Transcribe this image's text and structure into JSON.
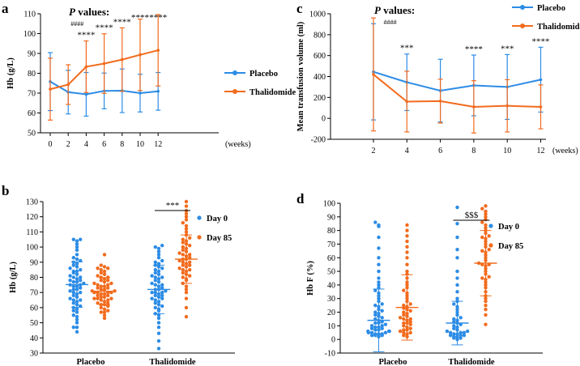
{
  "colors": {
    "placebo": "#2C8CE6",
    "thalidomide": "#F26B1D",
    "axis": "#000000"
  },
  "panels": {
    "a": {
      "label": "a"
    },
    "b": {
      "label": "b"
    },
    "c": {
      "label": "c"
    },
    "d": {
      "label": "d"
    }
  },
  "chart_data": [
    {
      "panel": "a",
      "type": "line",
      "title_parts": {
        "p_italic": "P",
        "rest": " values:"
      },
      "ylabel": "Hb (g/L)",
      "xlabel": "(weeks)",
      "x": [
        0,
        2,
        4,
        6,
        8,
        10,
        12
      ],
      "xlim": [
        -1,
        13
      ],
      "ylim": [
        50,
        110
      ],
      "yticks": [
        50,
        60,
        70,
        80,
        90,
        100,
        110
      ],
      "series": [
        {
          "name": "Placebo",
          "color_key": "placebo",
          "values": [
            75.8,
            70.5,
            69.4,
            71.1,
            71.2,
            70.0,
            70.9
          ],
          "err": [
            14.6,
            11.0,
            11.0,
            9.0,
            11.0,
            9.5,
            9.5
          ]
        },
        {
          "name": "Thalidomide",
          "color_key": "thalidomide",
          "values": [
            72.0,
            74.3,
            83.3,
            84.9,
            86.9,
            89.3,
            91.6
          ],
          "err": [
            15.6,
            10.0,
            13.0,
            15.0,
            16.0,
            18.0,
            18.0
          ]
        }
      ],
      "annotations": [
        {
          "x": 3,
          "text": "####",
          "small": true
        },
        {
          "x": 4,
          "text": "****"
        },
        {
          "x": 6,
          "text": "****"
        },
        {
          "x": 8,
          "text": "****"
        },
        {
          "x": 10,
          "text": "****"
        },
        {
          "x": 12,
          "text": "****"
        }
      ]
    },
    {
      "panel": "b",
      "type": "scatter",
      "ylabel": "Hb (g/L)",
      "ylim": [
        30,
        130
      ],
      "yticks": [
        30,
        40,
        50,
        60,
        70,
        80,
        90,
        100,
        110,
        120,
        130
      ],
      "categories": [
        "Placebo",
        "Thalidomide"
      ],
      "legend": [
        "Day 0",
        "Day 85"
      ],
      "significance": "***",
      "groups": [
        {
          "category": "Placebo",
          "series": "Day 0",
          "color_key": "placebo",
          "mean": 75.2,
          "sd": 15.0,
          "values": [
            44,
            47,
            50,
            52,
            54,
            55,
            57,
            58,
            59,
            60,
            61,
            62,
            63,
            64,
            65,
            65,
            66,
            67,
            68,
            69,
            70,
            70,
            71,
            72,
            72,
            73,
            74,
            74,
            75,
            75,
            76,
            77,
            77,
            78,
            78,
            79,
            80,
            80,
            81,
            82,
            83,
            84,
            84,
            85,
            86,
            87,
            88,
            89,
            90,
            91,
            92,
            93,
            95,
            98,
            100,
            102,
            104,
            105,
            105,
            47
          ]
        },
        {
          "category": "Placebo",
          "series": "Day 85",
          "color_key": "thalidomide",
          "mean": 70.8,
          "sd": 9.0,
          "values": [
            53,
            55,
            57,
            58,
            59,
            60,
            61,
            62,
            63,
            63,
            64,
            65,
            65,
            66,
            66,
            67,
            67,
            68,
            68,
            69,
            69,
            70,
            70,
            70,
            71,
            71,
            72,
            72,
            73,
            73,
            74,
            74,
            75,
            75,
            76,
            76,
            77,
            78,
            78,
            79,
            80,
            80,
            81,
            82,
            83,
            84,
            85,
            86,
            86,
            87,
            88,
            95,
            57,
            62,
            66,
            70
          ]
        },
        {
          "category": "Thalidomide",
          "series": "Day 0",
          "color_key": "placebo",
          "mean": 72.0,
          "sd": 16.0,
          "values": [
            33,
            38,
            43,
            47,
            50,
            53,
            55,
            56,
            58,
            59,
            60,
            61,
            62,
            63,
            64,
            65,
            66,
            67,
            68,
            68,
            69,
            70,
            70,
            71,
            72,
            72,
            73,
            74,
            75,
            75,
            76,
            77,
            78,
            79,
            80,
            80,
            81,
            82,
            83,
            84,
            85,
            86,
            87,
            88,
            89,
            90,
            91,
            93,
            95,
            97,
            99,
            100,
            101,
            66,
            70
          ]
        },
        {
          "category": "Thalidomide",
          "series": "Day 85",
          "color_key": "thalidomide",
          "mean": 92.0,
          "sd": 16.0,
          "values": [
            54,
            60,
            66,
            70,
            72,
            74,
            76,
            78,
            79,
            80,
            81,
            82,
            83,
            84,
            85,
            86,
            87,
            88,
            89,
            90,
            90,
            91,
            92,
            92,
            93,
            94,
            95,
            95,
            96,
            97,
            98,
            99,
            100,
            101,
            102,
            103,
            104,
            105,
            106,
            108,
            110,
            112,
            114,
            116,
            118,
            120,
            122,
            124,
            127,
            130,
            88,
            85
          ]
        }
      ]
    },
    {
      "panel": "c",
      "type": "line",
      "title_parts": {
        "p_italic": "P",
        "rest": " values:"
      },
      "ylabel": "Mean transfusion volume (ml)",
      "xlabel": "(weeks)",
      "x": [
        2,
        4,
        6,
        8,
        10,
        12
      ],
      "xlim": [
        1,
        13
      ],
      "ylim": [
        -200,
        1000
      ],
      "yticks": [
        -200,
        0,
        200,
        400,
        600,
        800,
        1000
      ],
      "series": [
        {
          "name": "Placebo",
          "color_key": "placebo",
          "values": [
            445,
            345,
            265,
            315,
            300,
            370
          ],
          "err": [
            460,
            270,
            300,
            290,
            310,
            310
          ]
        },
        {
          "name": "Thalidomide",
          "color_key": "thalidomide",
          "values": [
            420,
            160,
            165,
            110,
            120,
            110
          ],
          "err": [
            540,
            290,
            210,
            250,
            250,
            210
          ]
        }
      ],
      "annotations": [
        {
          "x": 3,
          "text": "####",
          "small": true
        },
        {
          "x": 4,
          "text": "***"
        },
        {
          "x": 8,
          "text": "****"
        },
        {
          "x": 10,
          "text": "***"
        },
        {
          "x": 12,
          "text": "****"
        }
      ]
    },
    {
      "panel": "d",
      "type": "scatter",
      "ylabel": "Hb F (%)",
      "ylim": [
        -10,
        100
      ],
      "yticks": [
        -10,
        0,
        10,
        20,
        30,
        40,
        50,
        60,
        70,
        80,
        90,
        100
      ],
      "categories": [
        "Placebo",
        "Thalidomide"
      ],
      "legend": [
        "Day 0",
        "Day 85"
      ],
      "significance": "$$$",
      "groups": [
        {
          "category": "Placebo",
          "series": "Day 0",
          "color_key": "placebo",
          "mean": 14.0,
          "sd": 23.0,
          "values": [
            2,
            3,
            3,
            4,
            4,
            5,
            5,
            5,
            6,
            6,
            7,
            7,
            8,
            8,
            9,
            9,
            10,
            10,
            11,
            12,
            12,
            13,
            14,
            15,
            16,
            17,
            18,
            19,
            20,
            21,
            22,
            24,
            25,
            26,
            28,
            30,
            32,
            34,
            36,
            38,
            40,
            42,
            45,
            50,
            55,
            60,
            67,
            75,
            83,
            84,
            86,
            3,
            4,
            6
          ]
        },
        {
          "category": "Placebo",
          "series": "Day 85",
          "color_key": "thalidomide",
          "mean": 23.5,
          "sd": 24.0,
          "values": [
            2,
            3,
            4,
            5,
            6,
            7,
            8,
            9,
            10,
            11,
            12,
            13,
            14,
            15,
            16,
            17,
            18,
            19,
            20,
            21,
            22,
            23,
            24,
            25,
            26,
            28,
            30,
            32,
            34,
            36,
            38,
            40,
            42,
            45,
            48,
            50,
            55,
            60,
            64,
            68,
            72,
            76,
            80,
            84,
            5,
            7,
            12,
            15
          ]
        },
        {
          "category": "Thalidomide",
          "series": "Day 0",
          "color_key": "placebo",
          "mean": 12.0,
          "sd": 16.0,
          "values": [
            0,
            1,
            1,
            2,
            2,
            3,
            3,
            4,
            4,
            5,
            5,
            6,
            6,
            7,
            8,
            9,
            10,
            11,
            12,
            13,
            14,
            15,
            16,
            18,
            20,
            22,
            24,
            26,
            28,
            30,
            35,
            40,
            45,
            50,
            60,
            66,
            75,
            85,
            97,
            3,
            5
          ]
        },
        {
          "category": "Thalidomide",
          "series": "Day 85",
          "color_key": "thalidomide",
          "mean": 56.0,
          "sd": 24.0,
          "values": [
            11,
            18,
            22,
            25,
            28,
            30,
            32,
            35,
            38,
            40,
            42,
            44,
            46,
            48,
            50,
            52,
            54,
            55,
            56,
            58,
            60,
            62,
            64,
            66,
            68,
            70,
            72,
            74,
            76,
            78,
            80,
            82,
            84,
            86,
            88,
            90,
            92,
            94,
            96,
            98,
            45,
            55,
            65,
            75
          ]
        }
      ]
    }
  ]
}
